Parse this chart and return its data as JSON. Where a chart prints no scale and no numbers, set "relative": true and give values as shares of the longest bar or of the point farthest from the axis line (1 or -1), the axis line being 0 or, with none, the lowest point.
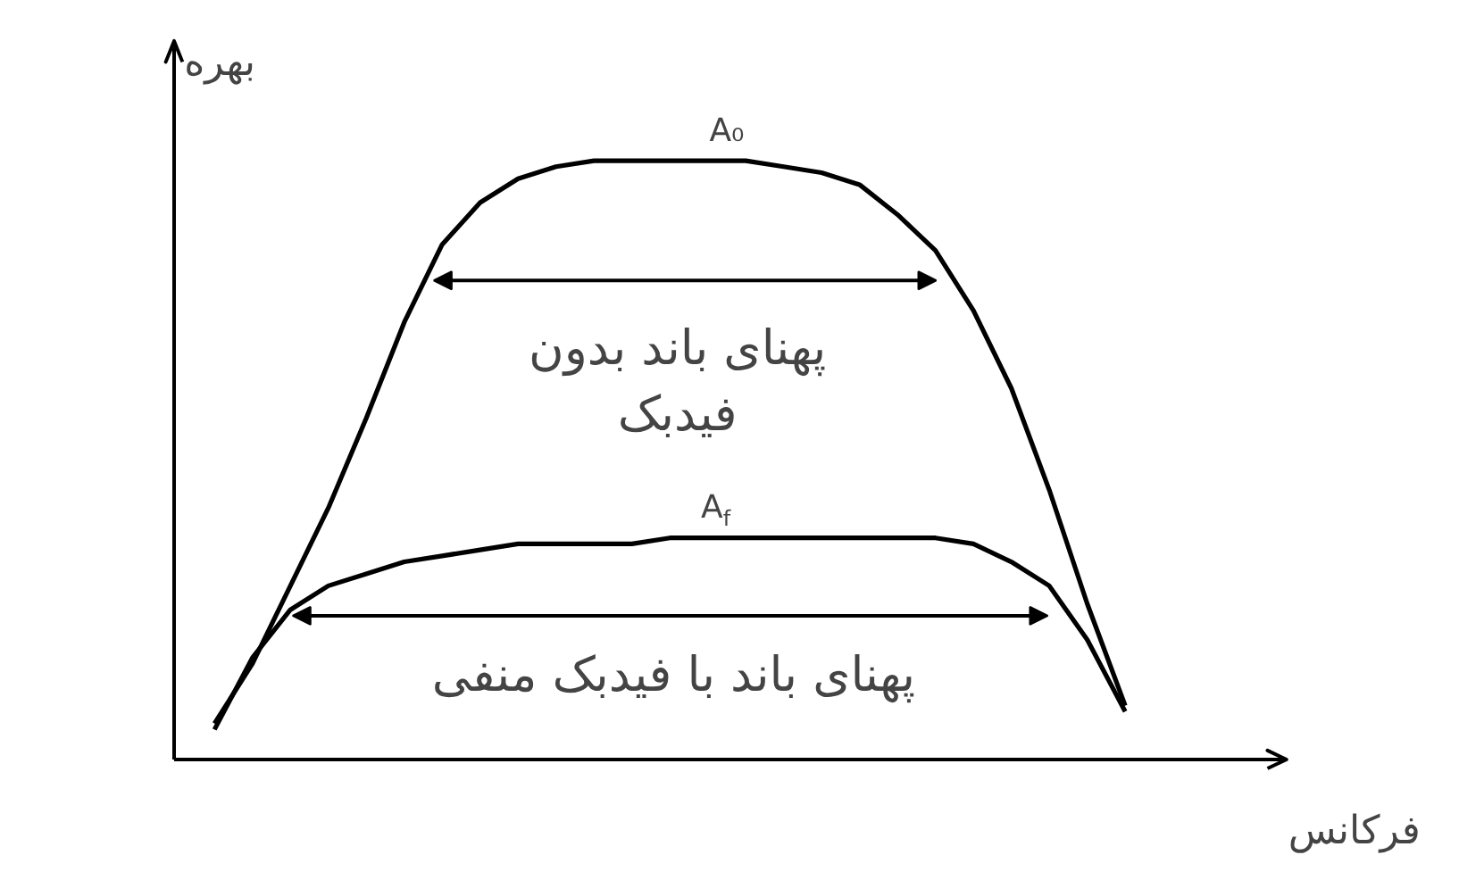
{
  "chart_data": {
    "type": "line",
    "relative": true,
    "ylabel": "بهره",
    "xlabel": "فرکانس",
    "grid": false,
    "line_style": "solid",
    "categories": [
      null,
      null,
      null,
      null,
      null,
      null,
      null,
      null,
      null,
      null,
      null,
      null,
      null,
      null,
      null,
      null,
      null,
      null,
      null,
      null,
      null,
      null,
      null,
      null,
      null
    ],
    "series": [
      {
        "color": "#000000",
        "values": [
          0.06,
          0.16,
          0.29,
          0.42,
          0.57,
          0.73,
          0.86,
          0.93,
          0.97,
          0.99,
          1.0,
          1.0,
          1.0,
          1.0,
          1.0,
          0.99,
          0.98,
          0.96,
          0.91,
          0.85,
          0.75,
          0.62,
          0.45,
          0.26,
          0.09
        ]
      },
      {
        "color": "#000000",
        "values": [
          0.05,
          0.17,
          0.25,
          0.29,
          0.31,
          0.33,
          0.34,
          0.35,
          0.36,
          0.36,
          0.36,
          0.36,
          0.37,
          0.37,
          0.37,
          0.37,
          0.37,
          0.37,
          0.37,
          0.37,
          0.36,
          0.33,
          0.29,
          0.2,
          0.08
        ]
      }
    ],
    "annotations": [
      "A₀",
      "پهنای باند بدون فیدبک",
      "A$_{f}$",
      "پهنای باند با فیدبک منفی"
    ]
  }
}
